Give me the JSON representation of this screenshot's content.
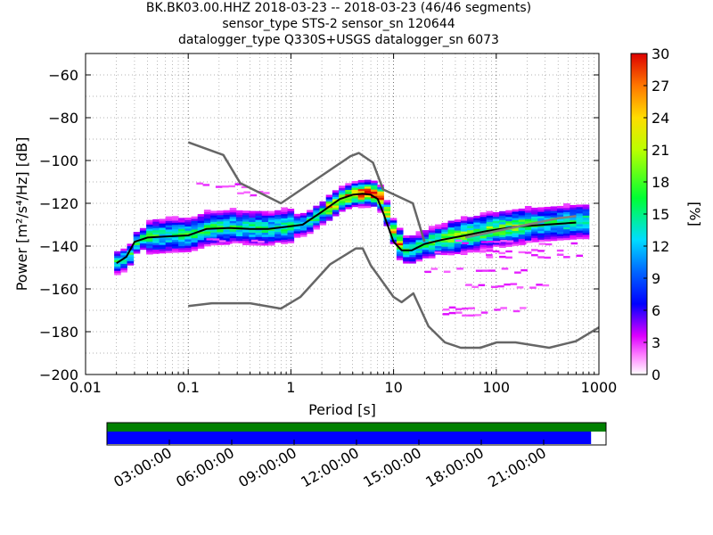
{
  "title": {
    "line1": "BK.BK03.00.HHZ   2018-03-23 -- 2018-03-23  (46/46 segments)",
    "line2": "sensor_type STS-2 sensor_sn 120644",
    "line3": "datalogger_type Q330S+USGS datalogger_sn 6073"
  },
  "chart_data": [
    {
      "type": "heatmap",
      "title": "BK.BK03.00.HHZ   2018-03-23 -- 2018-03-23  (46/46 segments)",
      "xlabel": "Period [s]",
      "ylabel": "Power [m²/s⁴/Hz] [dB]",
      "xscale": "log",
      "xlim": [
        0.01,
        1000
      ],
      "ylim": [
        -200,
        -50
      ],
      "x_ticks": [
        "0.01",
        "0.1",
        "1",
        "10",
        "100",
        "1000"
      ],
      "x_tick_values": [
        0.01,
        0.1,
        1,
        10,
        100,
        1000
      ],
      "y_ticks": [
        "−60",
        "−80",
        "−100",
        "−120",
        "−140",
        "−160",
        "−180",
        "−200"
      ],
      "y_tick_values": [
        -60,
        -80,
        -100,
        -120,
        -140,
        -160,
        -180,
        -200
      ],
      "grid": "dotted, on",
      "colorbar": {
        "label": "[%]",
        "range": [
          0,
          30
        ],
        "ticks": [
          "0",
          "3",
          "6",
          "9",
          "12",
          "15",
          "18",
          "21",
          "24",
          "27",
          "30"
        ],
        "colormap": "pqlx (white-magenta-blue-cyan-green-yellow-red)"
      },
      "series": [
        {
          "role": "NHNM",
          "color": "#666666",
          "x": [
            0.1,
            0.22,
            0.32,
            0.8,
            3.8,
            4.6,
            6.3,
            7.9,
            15.4,
            20
          ],
          "y": [
            -91.5,
            -97.4,
            -110.5,
            -120,
            -98,
            -96.5,
            -101,
            -113.5,
            -120,
            -138
          ]
        },
        {
          "role": "NLNM",
          "color": "#666666",
          "x": [
            0.1,
            0.17,
            0.4,
            0.8,
            1.24,
            2.4,
            4.3,
            5,
            6,
            10,
            12,
            15.6,
            21.9,
            31.6,
            45,
            70,
            101,
            154,
            328,
            600,
            1000
          ],
          "y": [
            -168,
            -166.7,
            -166.7,
            -169.2,
            -163.7,
            -148.6,
            -141.1,
            -141.1,
            -149,
            -163.8,
            -166.2,
            -162.1,
            -177.5,
            -185,
            -187.5,
            -187.5,
            -185,
            -185,
            -187.5,
            -184.4,
            -178
          ]
        },
        {
          "role": "mode",
          "color": "#000000",
          "x": [
            0.02,
            0.025,
            0.03,
            0.04,
            0.06,
            0.1,
            0.15,
            0.25,
            0.4,
            0.6,
            0.9,
            1.3,
            2,
            3,
            4,
            5,
            6,
            7,
            8,
            10,
            12,
            15,
            20,
            30,
            50,
            80,
            150,
            300,
            600
          ],
          "y": [
            -148,
            -145,
            -138,
            -136,
            -135.5,
            -135,
            -132,
            -131.5,
            -132,
            -132,
            -131,
            -130,
            -124,
            -118,
            -116,
            -115.5,
            -116,
            -118,
            -125,
            -138,
            -142,
            -142,
            -139,
            -137,
            -135,
            -133,
            -131,
            -130,
            -129
          ]
        },
        {
          "role": "mean",
          "color": "#808080",
          "x": [
            50,
            100,
            200,
            400,
            600
          ],
          "y": [
            -136,
            -133,
            -130,
            -127,
            -126
          ]
        }
      ]
    },
    {
      "type": "bar",
      "role": "data availability",
      "time_ticks": [
        "03:00:00",
        "06:00:00",
        "09:00:00",
        "12:00:00",
        "15:00:00",
        "18:00:00",
        "21:00:00"
      ],
      "bars": [
        {
          "name": "",
          "color": "#008000",
          "coverage": 1.0
        },
        {
          "name": "",
          "color": "#0000ff",
          "coverage": 0.97
        }
      ]
    }
  ]
}
